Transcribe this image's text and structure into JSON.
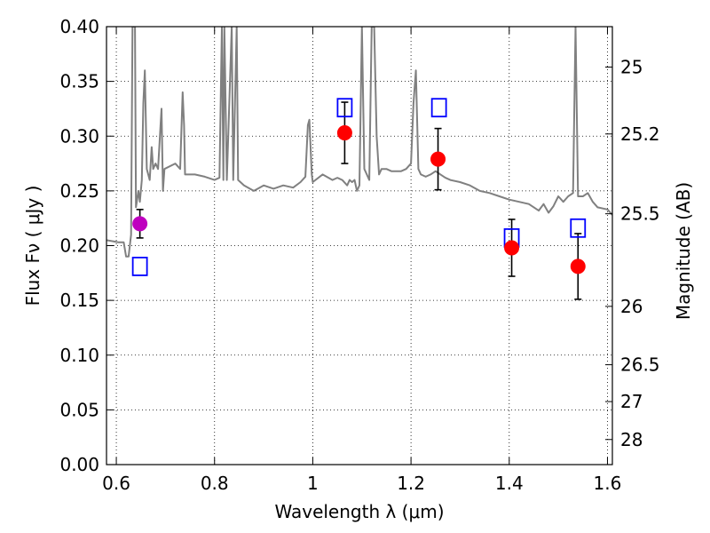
{
  "chart_data": {
    "type": "scatter",
    "xlabel": "Wavelength  λ (μm)",
    "ylabel": "Flux  Fν  ( μJy )",
    "y2label": "Magnitude (AB)",
    "xlim": [
      0.58,
      1.61
    ],
    "ylim": [
      0.0,
      0.4
    ],
    "grid": true,
    "x_ticks": [
      {
        "value": 0.6,
        "label": "0.6"
      },
      {
        "value": 0.8,
        "label": "0.8"
      },
      {
        "value": 1.0,
        "label": "1"
      },
      {
        "value": 1.2,
        "label": "1.2"
      },
      {
        "value": 1.4,
        "label": "1.4"
      },
      {
        "value": 1.6,
        "label": "1.6"
      }
    ],
    "y_ticks": [
      {
        "value": 0.0,
        "label": "0.00"
      },
      {
        "value": 0.05,
        "label": "0.05"
      },
      {
        "value": 0.1,
        "label": "0.10"
      },
      {
        "value": 0.15,
        "label": "0.15"
      },
      {
        "value": 0.2,
        "label": "0.20"
      },
      {
        "value": 0.25,
        "label": "0.25"
      },
      {
        "value": 0.3,
        "label": "0.30"
      },
      {
        "value": 0.35,
        "label": "0.35"
      },
      {
        "value": 0.4,
        "label": "0.40"
      }
    ],
    "mag_ticks": [
      {
        "value": 25,
        "label": "25"
      },
      {
        "value": 25.2,
        "label": "25.2"
      },
      {
        "value": 25.5,
        "label": "25.5"
      },
      {
        "value": 26,
        "label": "26"
      },
      {
        "value": 26.5,
        "label": "26.5"
      },
      {
        "value": 27,
        "label": "27"
      },
      {
        "value": 28,
        "label": "28"
      }
    ],
    "series": [
      {
        "kind": "line",
        "color": "#808080",
        "points": [
          [
            0.58,
            0.205
          ],
          [
            0.605,
            0.203
          ],
          [
            0.615,
            0.203
          ],
          [
            0.62,
            0.19
          ],
          [
            0.625,
            0.19
          ],
          [
            0.63,
            0.21
          ],
          [
            0.633,
            0.4
          ],
          [
            0.638,
            0.4
          ],
          [
            0.64,
            0.235
          ],
          [
            0.645,
            0.25
          ],
          [
            0.648,
            0.24
          ],
          [
            0.652,
            0.26
          ],
          [
            0.655,
            0.33
          ],
          [
            0.658,
            0.36
          ],
          [
            0.662,
            0.27
          ],
          [
            0.668,
            0.26
          ],
          [
            0.672,
            0.29
          ],
          [
            0.675,
            0.27
          ],
          [
            0.68,
            0.275
          ],
          [
            0.685,
            0.27
          ],
          [
            0.69,
            0.31
          ],
          [
            0.692,
            0.325
          ],
          [
            0.695,
            0.25
          ],
          [
            0.698,
            0.27
          ],
          [
            0.72,
            0.275
          ],
          [
            0.73,
            0.27
          ],
          [
            0.735,
            0.34
          ],
          [
            0.738,
            0.31
          ],
          [
            0.74,
            0.265
          ],
          [
            0.745,
            0.265
          ],
          [
            0.76,
            0.265
          ],
          [
            0.78,
            0.263
          ],
          [
            0.8,
            0.26
          ],
          [
            0.81,
            0.262
          ],
          [
            0.815,
            0.4
          ],
          [
            0.818,
            0.26
          ],
          [
            0.82,
            0.4
          ],
          [
            0.825,
            0.26
          ],
          [
            0.835,
            0.4
          ],
          [
            0.838,
            0.26
          ],
          [
            0.845,
            0.4
          ],
          [
            0.848,
            0.26
          ],
          [
            0.86,
            0.255
          ],
          [
            0.88,
            0.25
          ],
          [
            0.9,
            0.255
          ],
          [
            0.92,
            0.252
          ],
          [
            0.94,
            0.255
          ],
          [
            0.96,
            0.253
          ],
          [
            0.975,
            0.258
          ],
          [
            0.985,
            0.263
          ],
          [
            0.99,
            0.31
          ],
          [
            0.993,
            0.315
          ],
          [
            0.998,
            0.265
          ],
          [
            1.0,
            0.258
          ],
          [
            1.02,
            0.265
          ],
          [
            1.04,
            0.26
          ],
          [
            1.05,
            0.262
          ],
          [
            1.06,
            0.26
          ],
          [
            1.07,
            0.255
          ],
          [
            1.075,
            0.26
          ],
          [
            1.08,
            0.258
          ],
          [
            1.085,
            0.26
          ],
          [
            1.09,
            0.25
          ],
          [
            1.095,
            0.255
          ],
          [
            1.1,
            0.4
          ],
          [
            1.105,
            0.27
          ],
          [
            1.11,
            0.265
          ],
          [
            1.115,
            0.26
          ],
          [
            1.12,
            0.4
          ],
          [
            1.125,
            0.4
          ],
          [
            1.13,
            0.3
          ],
          [
            1.135,
            0.265
          ],
          [
            1.14,
            0.27
          ],
          [
            1.15,
            0.27
          ],
          [
            1.16,
            0.268
          ],
          [
            1.17,
            0.268
          ],
          [
            1.18,
            0.268
          ],
          [
            1.19,
            0.27
          ],
          [
            1.2,
            0.275
          ],
          [
            1.205,
            0.33
          ],
          [
            1.21,
            0.36
          ],
          [
            1.215,
            0.27
          ],
          [
            1.22,
            0.265
          ],
          [
            1.23,
            0.263
          ],
          [
            1.24,
            0.265
          ],
          [
            1.25,
            0.268
          ],
          [
            1.26,
            0.265
          ],
          [
            1.27,
            0.262
          ],
          [
            1.28,
            0.26
          ],
          [
            1.3,
            0.258
          ],
          [
            1.32,
            0.255
          ],
          [
            1.34,
            0.25
          ],
          [
            1.36,
            0.248
          ],
          [
            1.38,
            0.245
          ],
          [
            1.4,
            0.242
          ],
          [
            1.42,
            0.24
          ],
          [
            1.44,
            0.238
          ],
          [
            1.46,
            0.232
          ],
          [
            1.47,
            0.238
          ],
          [
            1.48,
            0.23
          ],
          [
            1.49,
            0.236
          ],
          [
            1.5,
            0.245
          ],
          [
            1.51,
            0.24
          ],
          [
            1.52,
            0.245
          ],
          [
            1.53,
            0.248
          ],
          [
            1.535,
            0.4
          ],
          [
            1.54,
            0.245
          ],
          [
            1.55,
            0.245
          ],
          [
            1.56,
            0.248
          ],
          [
            1.57,
            0.24
          ],
          [
            1.58,
            0.235
          ],
          [
            1.6,
            0.233
          ],
          [
            1.61,
            0.228
          ]
        ]
      },
      {
        "kind": "observed",
        "color": "#ff0000",
        "points": [
          {
            "x": 1.065,
            "y": 0.303,
            "err": 0.028
          },
          {
            "x": 1.255,
            "y": 0.279,
            "err": 0.028
          },
          {
            "x": 1.405,
            "y": 0.198,
            "err": 0.026
          },
          {
            "x": 1.54,
            "y": 0.181,
            "err": 0.03
          }
        ]
      },
      {
        "kind": "observed",
        "color": "#bf00bf",
        "points": [
          {
            "x": 0.648,
            "y": 0.22,
            "err": 0.013
          }
        ]
      },
      {
        "kind": "model",
        "color": "#0000ff",
        "points": [
          {
            "x": 0.648,
            "y": 0.181
          },
          {
            "x": 1.065,
            "y": 0.326
          },
          {
            "x": 1.257,
            "y": 0.326
          },
          {
            "x": 1.405,
            "y": 0.207
          },
          {
            "x": 1.54,
            "y": 0.216
          }
        ]
      }
    ]
  }
}
